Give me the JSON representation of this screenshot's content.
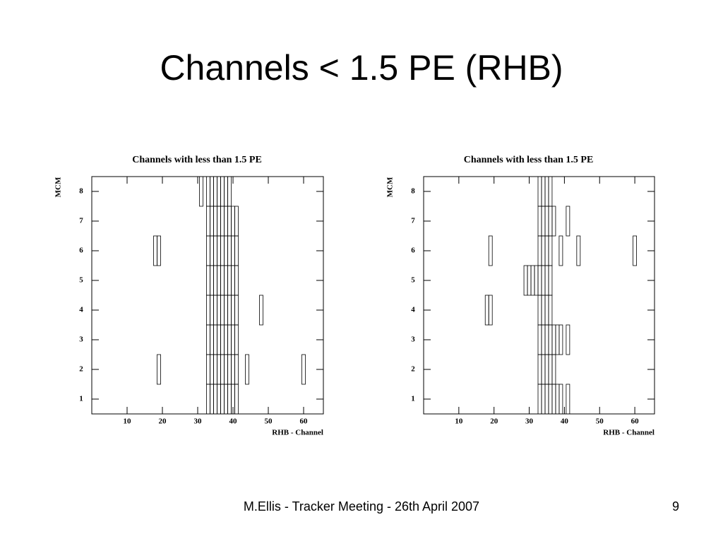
{
  "title": "Channels < 1.5 PE (RHB)",
  "footer": "M.Ellis - Tracker Meeting - 26th April 2007",
  "page_number": "9",
  "chart_data": [
    {
      "type": "cells",
      "title": "Channels with less than 1.5 PE",
      "x_label": "RHB - Channel",
      "y_label": "MCM",
      "xlim": [
        0,
        65.6
      ],
      "ylim": [
        0.5,
        8.5
      ],
      "xticks": [
        10,
        20,
        30,
        40,
        50,
        60
      ],
      "yticks": [
        1,
        2,
        3,
        4,
        5,
        6,
        7,
        8
      ],
      "x": [
        31,
        33,
        34,
        35,
        36,
        37,
        38,
        39,
        33,
        34,
        35,
        36,
        37,
        38,
        39,
        40,
        41,
        33,
        34,
        35,
        36,
        37,
        38,
        39,
        40,
        41,
        33,
        34,
        35,
        36,
        37,
        38,
        39,
        40,
        41,
        33,
        34,
        35,
        36,
        37,
        38,
        39,
        40,
        41,
        33,
        34,
        35,
        36,
        37,
        38,
        39,
        40,
        41,
        33,
        34,
        35,
        36,
        37,
        38,
        39,
        40,
        41,
        33,
        34,
        35,
        36,
        37,
        38,
        39,
        40,
        41,
        18,
        19,
        48,
        19,
        44,
        60
      ],
      "y": [
        8,
        8,
        8,
        8,
        8,
        8,
        8,
        8,
        7,
        7,
        7,
        7,
        7,
        7,
        7,
        7,
        7,
        6,
        6,
        6,
        6,
        6,
        6,
        6,
        6,
        6,
        5,
        5,
        5,
        5,
        5,
        5,
        5,
        5,
        5,
        4,
        4,
        4,
        4,
        4,
        4,
        4,
        4,
        4,
        3,
        3,
        3,
        3,
        3,
        3,
        3,
        3,
        3,
        2,
        2,
        2,
        2,
        2,
        2,
        2,
        2,
        2,
        1,
        1,
        1,
        1,
        1,
        1,
        1,
        1,
        1,
        6,
        6,
        4,
        2,
        2,
        2
      ]
    },
    {
      "type": "cells",
      "title": "Channels with less than 1.5 PE",
      "x_label": "RHB - Channel",
      "y_label": "MCM",
      "xlim": [
        0,
        65.6
      ],
      "ylim": [
        0.5,
        8.5
      ],
      "xticks": [
        10,
        20,
        30,
        40,
        50,
        60
      ],
      "yticks": [
        1,
        2,
        3,
        4,
        5,
        6,
        7,
        8
      ],
      "x": [
        33,
        34,
        35,
        36,
        33,
        34,
        35,
        36,
        33,
        34,
        35,
        36,
        33,
        34,
        35,
        36,
        33,
        34,
        35,
        36,
        33,
        34,
        35,
        36,
        33,
        34,
        35,
        36,
        33,
        34,
        35,
        36,
        37,
        41,
        19,
        39,
        44,
        60,
        29,
        30,
        31,
        32,
        18,
        19,
        37,
        38,
        39,
        41,
        37,
        37,
        38,
        39,
        41
      ],
      "y": [
        8,
        8,
        8,
        8,
        7,
        7,
        7,
        7,
        6,
        6,
        6,
        6,
        5,
        5,
        5,
        5,
        4,
        4,
        4,
        4,
        3,
        3,
        3,
        3,
        2,
        2,
        2,
        2,
        1,
        1,
        1,
        1,
        7,
        7,
        6,
        6,
        6,
        6,
        5,
        5,
        5,
        5,
        4,
        4,
        3,
        3,
        3,
        3,
        2,
        1,
        1,
        1,
        1
      ]
    }
  ]
}
